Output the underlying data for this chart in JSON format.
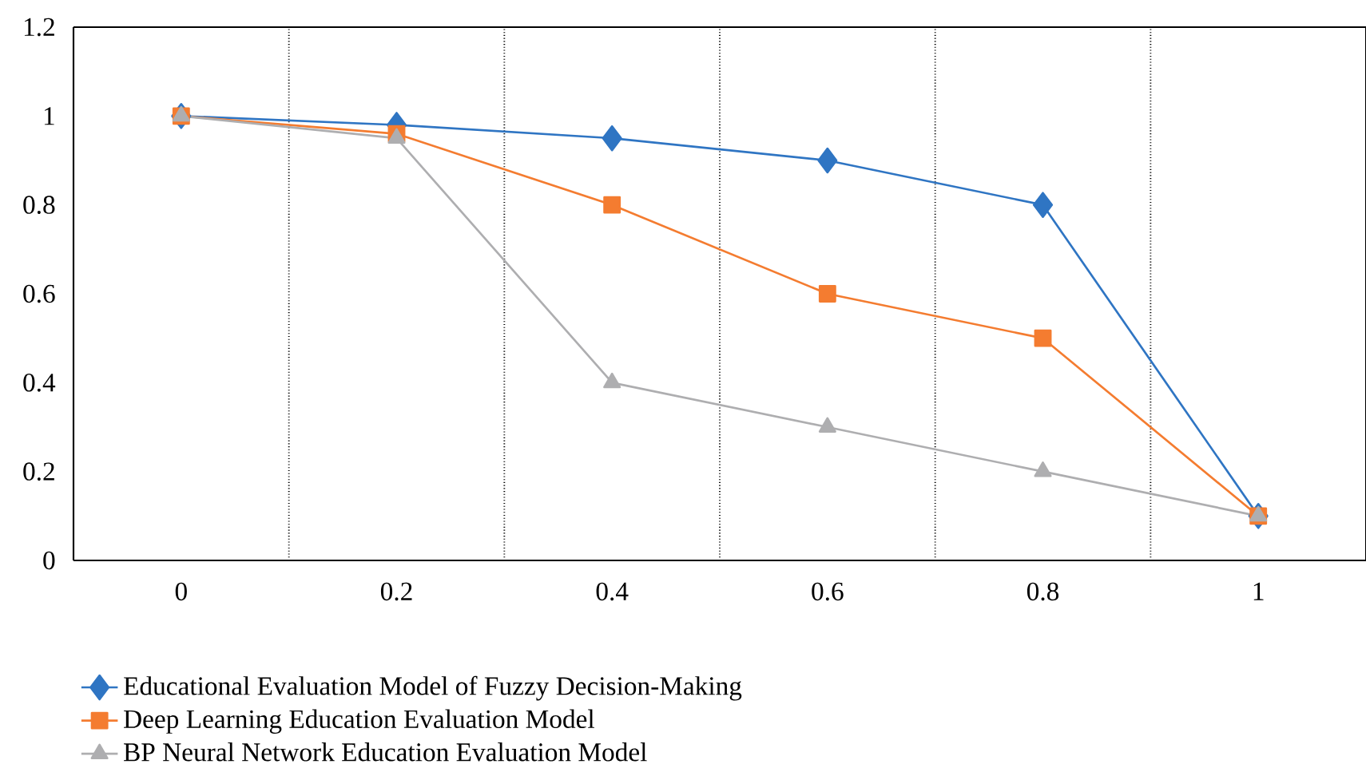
{
  "chart_data": {
    "type": "line",
    "categories": [
      "0",
      "0.2",
      "0.4",
      "0.6",
      "0.8",
      "1"
    ],
    "series": [
      {
        "name": "Educational Evaluation Model of Fuzzy Decision-Making",
        "color": "#2f75c3",
        "marker": "diamond",
        "values": [
          1,
          0.98,
          0.95,
          0.9,
          0.8,
          0.1
        ]
      },
      {
        "name": "Deep Learning Education Evaluation Model",
        "color": "#f47c30",
        "marker": "square",
        "values": [
          1,
          0.96,
          0.8,
          0.6,
          0.5,
          0.1
        ]
      },
      {
        "name": "BP Neural Network Education Evaluation Model",
        "color": "#aeaeb0",
        "marker": "triangle",
        "values": [
          1,
          0.95,
          0.4,
          0.3,
          0.2,
          0.1
        ]
      }
    ],
    "ylim": [
      0,
      1.2
    ],
    "yticks": [
      0,
      0.2,
      0.4,
      0.6,
      0.8,
      1,
      1.2
    ],
    "grid": "x",
    "legend": "bottom left",
    "line_style": "solid"
  }
}
